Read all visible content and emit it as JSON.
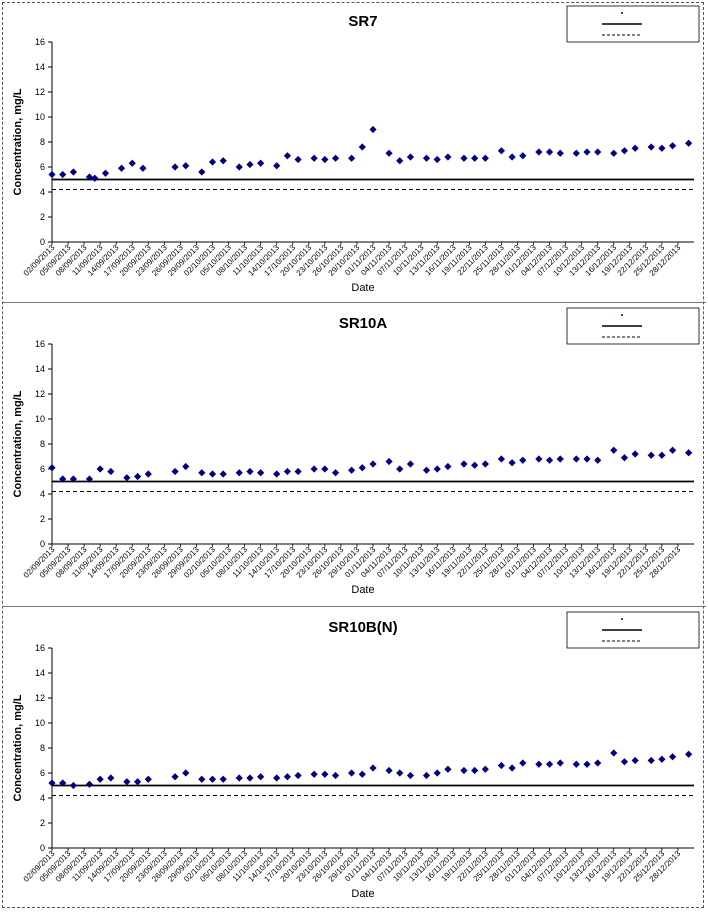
{
  "chart_data": [
    {
      "type": "scatter",
      "title": "SR7",
      "xlabel": "Date",
      "ylabel": "Concentration, mg/L",
      "ylim": [
        0,
        16
      ],
      "yticks": [
        0,
        2,
        4,
        6,
        8,
        10,
        12,
        14,
        16
      ],
      "xlim": [
        "02/09/2013",
        "31/12/2013"
      ],
      "grid": false,
      "legend_position": "top-right",
      "x_tick_labels": [
        "02/09/2013",
        "05/09/2013",
        "08/09/2013",
        "11/09/2013",
        "14/09/2013",
        "17/09/2013",
        "20/09/2013",
        "23/09/2013",
        "26/09/2013",
        "29/09/2013",
        "02/10/2013",
        "05/10/2013",
        "08/10/2013",
        "11/10/2013",
        "14/10/2013",
        "17/10/2013",
        "20/10/2013",
        "23/10/2013",
        "26/10/2013",
        "29/10/2013",
        "01/11/2013",
        "04/11/2013",
        "07/11/2013",
        "10/11/2013",
        "13/11/2013",
        "16/11/2013",
        "19/11/2013",
        "22/11/2013",
        "25/11/2013",
        "28/11/2013",
        "01/12/2013",
        "04/12/2013",
        "07/12/2013",
        "10/12/2013",
        "13/12/2013",
        "16/12/2013",
        "19/12/2013",
        "22/12/2013",
        "25/12/2013",
        "28/12/2013"
      ],
      "series": [
        {
          "marker": "diamond",
          "color": "#000080",
          "x": [
            "02/09/2013",
            "04/09/2013",
            "06/09/2013",
            "09/09/2013",
            "10/09/2013",
            "12/09/2013",
            "15/09/2013",
            "17/09/2013",
            "19/09/2013",
            "25/09/2013",
            "27/09/2013",
            "30/09/2013",
            "02/10/2013",
            "04/10/2013",
            "07/10/2013",
            "09/10/2013",
            "11/10/2013",
            "14/10/2013",
            "16/10/2013",
            "18/10/2013",
            "21/10/2013",
            "23/10/2013",
            "25/10/2013",
            "28/10/2013",
            "30/10/2013",
            "01/11/2013",
            "04/11/2013",
            "06/11/2013",
            "08/11/2013",
            "11/11/2013",
            "13/11/2013",
            "15/11/2013",
            "18/11/2013",
            "20/11/2013",
            "22/11/2013",
            "25/11/2013",
            "27/11/2013",
            "29/11/2013",
            "02/12/2013",
            "04/12/2013",
            "06/12/2013",
            "09/12/2013",
            "11/12/2013",
            "13/12/2013",
            "16/12/2013",
            "18/12/2013",
            "20/12/2013",
            "23/12/2013",
            "25/12/2013",
            "27/12/2013",
            "30/12/2013"
          ],
          "y": [
            5.4,
            5.4,
            5.6,
            5.2,
            5.1,
            5.5,
            5.9,
            6.3,
            5.9,
            6.0,
            6.1,
            5.6,
            6.4,
            6.5,
            6.0,
            6.2,
            6.3,
            6.1,
            6.9,
            6.6,
            6.7,
            6.6,
            6.7,
            6.7,
            7.6,
            9.0,
            7.1,
            6.5,
            6.8,
            6.7,
            6.6,
            6.8,
            6.7,
            6.7,
            6.7,
            7.3,
            6.8,
            6.9,
            7.2,
            7.2,
            7.1,
            7.1,
            7.2,
            7.2,
            7.1,
            7.3,
            7.5,
            7.6,
            7.5,
            7.7,
            7.9
          ]
        }
      ],
      "reference_lines": [
        {
          "y": 5.0,
          "style": "solid"
        },
        {
          "y": 4.2,
          "style": "dashed"
        }
      ]
    },
    {
      "type": "scatter",
      "title": "SR10A",
      "xlabel": "Date",
      "ylabel": "Concentration, mg/L",
      "ylim": [
        0,
        16
      ],
      "yticks": [
        0,
        2,
        4,
        6,
        8,
        10,
        12,
        14,
        16
      ],
      "xlim": [
        "02/09/2013",
        "31/12/2013"
      ],
      "grid": false,
      "legend_position": "top-right",
      "x_tick_labels": [
        "02/09/2013",
        "05/09/2013",
        "08/09/2013",
        "11/09/2013",
        "14/09/2013",
        "17/09/2013",
        "20/09/2013",
        "23/09/2013",
        "26/09/2013",
        "29/09/2013",
        "02/10/2013",
        "05/10/2013",
        "08/10/2013",
        "11/10/2013",
        "14/10/2013",
        "17/10/2013",
        "20/10/2013",
        "23/10/2013",
        "26/10/2013",
        "29/10/2013",
        "01/11/2013",
        "04/11/2013",
        "07/11/2013",
        "10/11/2013",
        "13/11/2013",
        "16/11/2013",
        "19/11/2013",
        "22/11/2013",
        "25/11/2013",
        "28/11/2013",
        "01/12/2013",
        "04/12/2013",
        "07/12/2013",
        "10/12/2013",
        "13/12/2013",
        "16/12/2013",
        "19/12/2013",
        "22/12/2013",
        "25/12/2013",
        "28/12/2013"
      ],
      "series": [
        {
          "marker": "diamond",
          "color": "#000080",
          "x": [
            "02/09/2013",
            "04/09/2013",
            "06/09/2013",
            "09/09/2013",
            "11/09/2013",
            "13/09/2013",
            "16/09/2013",
            "18/09/2013",
            "20/09/2013",
            "25/09/2013",
            "27/09/2013",
            "30/09/2013",
            "02/10/2013",
            "04/10/2013",
            "07/10/2013",
            "09/10/2013",
            "11/10/2013",
            "14/10/2013",
            "16/10/2013",
            "18/10/2013",
            "21/10/2013",
            "23/10/2013",
            "25/10/2013",
            "28/10/2013",
            "30/10/2013",
            "01/11/2013",
            "04/11/2013",
            "06/11/2013",
            "08/11/2013",
            "11/11/2013",
            "13/11/2013",
            "15/11/2013",
            "18/11/2013",
            "20/11/2013",
            "22/11/2013",
            "25/11/2013",
            "27/11/2013",
            "29/11/2013",
            "02/12/2013",
            "04/12/2013",
            "06/12/2013",
            "09/12/2013",
            "11/12/2013",
            "13/12/2013",
            "16/12/2013",
            "18/12/2013",
            "20/12/2013",
            "23/12/2013",
            "25/12/2013",
            "27/12/2013",
            "30/12/2013"
          ],
          "y": [
            6.1,
            5.2,
            5.2,
            5.2,
            6.0,
            5.8,
            5.3,
            5.4,
            5.6,
            5.8,
            6.2,
            5.7,
            5.6,
            5.6,
            5.7,
            5.8,
            5.7,
            5.6,
            5.8,
            5.8,
            6.0,
            6.0,
            5.7,
            5.9,
            6.1,
            6.4,
            6.6,
            6.0,
            6.4,
            5.9,
            6.0,
            6.2,
            6.4,
            6.3,
            6.4,
            6.8,
            6.5,
            6.7,
            6.8,
            6.7,
            6.8,
            6.8,
            6.8,
            6.7,
            7.5,
            6.9,
            7.2,
            7.1,
            7.1,
            7.5,
            7.3
          ]
        }
      ],
      "reference_lines": [
        {
          "y": 5.0,
          "style": "solid"
        },
        {
          "y": 4.2,
          "style": "dashed"
        }
      ]
    },
    {
      "type": "scatter",
      "title": "SR10B(N)",
      "xlabel": "Date",
      "ylabel": "Concentration, mg/L",
      "ylim": [
        0,
        16
      ],
      "yticks": [
        0,
        2,
        4,
        6,
        8,
        10,
        12,
        14,
        16
      ],
      "xlim": [
        "02/09/2013",
        "31/12/2013"
      ],
      "grid": false,
      "legend_position": "top-right",
      "x_tick_labels": [
        "02/09/2013",
        "05/09/2013",
        "08/09/2013",
        "11/09/2013",
        "14/09/2013",
        "17/09/2013",
        "20/09/2013",
        "23/09/2013",
        "26/09/2013",
        "29/09/2013",
        "02/10/2013",
        "05/10/2013",
        "08/10/2013",
        "11/10/2013",
        "14/10/2013",
        "17/10/2013",
        "20/10/2013",
        "23/10/2013",
        "26/10/2013",
        "29/10/2013",
        "01/11/2013",
        "04/11/2013",
        "07/11/2013",
        "10/11/2013",
        "13/11/2013",
        "16/11/2013",
        "19/11/2013",
        "22/11/2013",
        "25/11/2013",
        "28/11/2013",
        "01/12/2013",
        "04/12/2013",
        "07/12/2013",
        "10/12/2013",
        "13/12/2013",
        "16/12/2013",
        "19/12/2013",
        "22/12/2013",
        "25/12/2013",
        "28/12/2013"
      ],
      "series": [
        {
          "marker": "diamond",
          "color": "#000080",
          "x": [
            "02/09/2013",
            "04/09/2013",
            "06/09/2013",
            "09/09/2013",
            "11/09/2013",
            "13/09/2013",
            "16/09/2013",
            "18/09/2013",
            "20/09/2013",
            "25/09/2013",
            "27/09/2013",
            "30/09/2013",
            "02/10/2013",
            "04/10/2013",
            "07/10/2013",
            "09/10/2013",
            "11/10/2013",
            "14/10/2013",
            "16/10/2013",
            "18/10/2013",
            "21/10/2013",
            "23/10/2013",
            "25/10/2013",
            "28/10/2013",
            "30/10/2013",
            "01/11/2013",
            "04/11/2013",
            "06/11/2013",
            "08/11/2013",
            "11/11/2013",
            "13/11/2013",
            "15/11/2013",
            "18/11/2013",
            "20/11/2013",
            "22/11/2013",
            "25/11/2013",
            "27/11/2013",
            "29/11/2013",
            "02/12/2013",
            "04/12/2013",
            "06/12/2013",
            "09/12/2013",
            "11/12/2013",
            "13/12/2013",
            "16/12/2013",
            "18/12/2013",
            "20/12/2013",
            "23/12/2013",
            "25/12/2013",
            "27/12/2013",
            "30/12/2013"
          ],
          "y": [
            5.2,
            5.2,
            5.0,
            5.1,
            5.5,
            5.6,
            5.3,
            5.3,
            5.5,
            5.7,
            6.0,
            5.5,
            5.5,
            5.5,
            5.6,
            5.6,
            5.7,
            5.6,
            5.7,
            5.8,
            5.9,
            5.9,
            5.8,
            6.0,
            5.9,
            6.4,
            6.2,
            6.0,
            5.8,
            5.8,
            6.0,
            6.3,
            6.2,
            6.2,
            6.3,
            6.6,
            6.4,
            6.8,
            6.7,
            6.7,
            6.8,
            6.7,
            6.7,
            6.8,
            7.6,
            6.9,
            7.0,
            7.0,
            7.1,
            7.3,
            7.5
          ]
        }
      ],
      "reference_lines": [
        {
          "y": 5.0,
          "style": "solid"
        },
        {
          "y": 4.2,
          "style": "dashed"
        }
      ]
    }
  ]
}
